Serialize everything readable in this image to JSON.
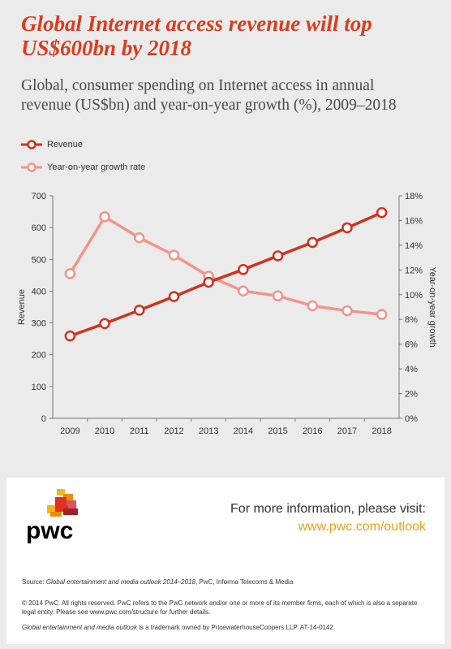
{
  "title_line1": "Global Internet access revenue will top",
  "title_line2": "US$600bn by 2018",
  "subtitle_line1": "Global, consumer spending on Internet access in annual",
  "subtitle_line2": "revenue (US$bn) and year-on-year growth (%), 2009–2018",
  "colors": {
    "accent": "#dc3b1c",
    "revenue": "#d0321f",
    "growth": "#ef958c",
    "link": "#e8a01a",
    "background": "#ebebeb"
  },
  "chart_data": {
    "type": "line",
    "categories": [
      "2009",
      "2010",
      "2011",
      "2012",
      "2013",
      "2014",
      "2015",
      "2016",
      "2017",
      "2018"
    ],
    "series": [
      {
        "name": "Revenue",
        "axis": "left",
        "color": "#d0321f",
        "values": [
          259,
          298,
          340,
          383,
          428,
          468,
          511,
          553,
          599,
          647
        ]
      },
      {
        "name": "Year-on-year growth rate",
        "axis": "right",
        "color": "#ef958c",
        "values": [
          11.7,
          16.3,
          14.6,
          13.2,
          11.5,
          10.3,
          9.9,
          9.1,
          8.7,
          8.4
        ]
      }
    ],
    "ylabel_left": "Revenue",
    "ylabel_right": "Year-on-year growth",
    "ylim_left": [
      0,
      700
    ],
    "ylim_right": [
      0,
      18
    ],
    "yticks_left": [
      "0",
      "100",
      "200",
      "300",
      "400",
      "500",
      "600",
      "700"
    ],
    "yticks_right": [
      "0%",
      "2%",
      "4%",
      "6%",
      "8%",
      "10%",
      "12%",
      "14%",
      "16%",
      "18%"
    ],
    "grid": false,
    "legend_position": "top-left"
  },
  "footer": {
    "logo_text": "pwc",
    "info_text": "For more information, please visit:",
    "info_link": "www.pwc.com/outlook",
    "source_prefix": "Source: ",
    "source_title": "Global entertainment and media outlook 2014–2018",
    "source_rest": ", PwC, Informa Telecoms & Media",
    "copyright": "© 2014 PwC. All rights reserved. PwC refers to the PwC network and/or one or more of its member firms, each of which is also a separate legal entity. Please see www.pwc.com/structure for further details.",
    "trademark_title": "Global entertainment and media outlook",
    "trademark_rest": " is a trademark owned by PricewaterhouseCoopers LLP. AT-14-0142"
  }
}
